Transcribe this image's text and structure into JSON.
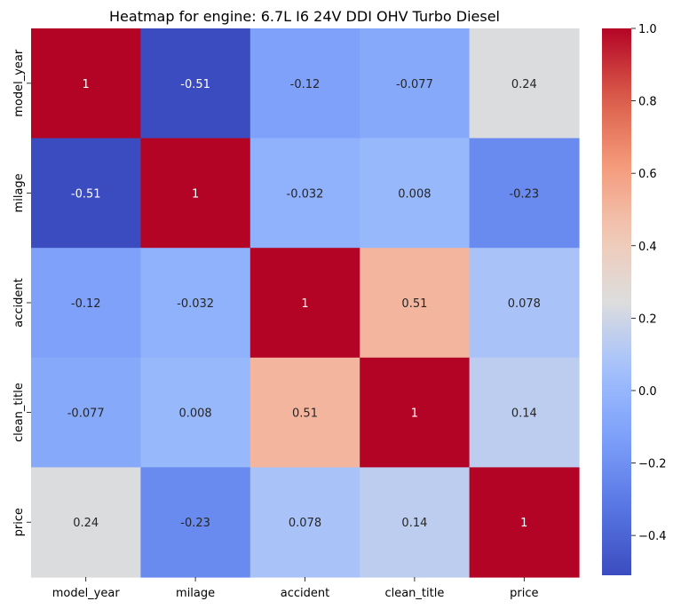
{
  "chart_data": {
    "type": "heatmap",
    "title": "Heatmap for engine: 6.7L I6 24V DDI OHV Turbo Diesel",
    "xlabel": "",
    "ylabel": "",
    "row_labels": [
      "model_year",
      "milage",
      "accident",
      "clean_title",
      "price"
    ],
    "col_labels": [
      "model_year",
      "milage",
      "accident",
      "clean_title",
      "price"
    ],
    "values": [
      [
        1,
        -0.51,
        -0.12,
        -0.077,
        0.24
      ],
      [
        -0.51,
        1,
        -0.032,
        0.008,
        -0.23
      ],
      [
        -0.12,
        -0.032,
        1,
        0.51,
        0.078
      ],
      [
        -0.077,
        0.008,
        0.51,
        1,
        0.14
      ],
      [
        0.24,
        -0.23,
        0.078,
        0.14,
        1
      ]
    ],
    "annotations": [
      [
        "1",
        "-0.51",
        "-0.12",
        "-0.077",
        "0.24"
      ],
      [
        "-0.51",
        "1",
        "-0.032",
        "0.008",
        "-0.23"
      ],
      [
        "-0.12",
        "-0.032",
        "1",
        "0.51",
        "0.078"
      ],
      [
        "-0.077",
        "0.008",
        "0.51",
        "1",
        "0.14"
      ],
      [
        "0.24",
        "-0.23",
        "0.078",
        "0.14",
        "1"
      ]
    ],
    "colormap": "coolwarm",
    "vmin": -0.51,
    "vmax": 1.0,
    "colorbar": {
      "ticks": [
        -0.4,
        -0.2,
        0.0,
        0.2,
        0.4,
        0.6,
        0.8,
        1.0
      ],
      "tick_labels": [
        "−0.4",
        "−0.2",
        "0.0",
        "0.2",
        "0.4",
        "0.6",
        "0.8",
        "1.0"
      ]
    },
    "grid": false,
    "legend": "colorbar-right"
  }
}
